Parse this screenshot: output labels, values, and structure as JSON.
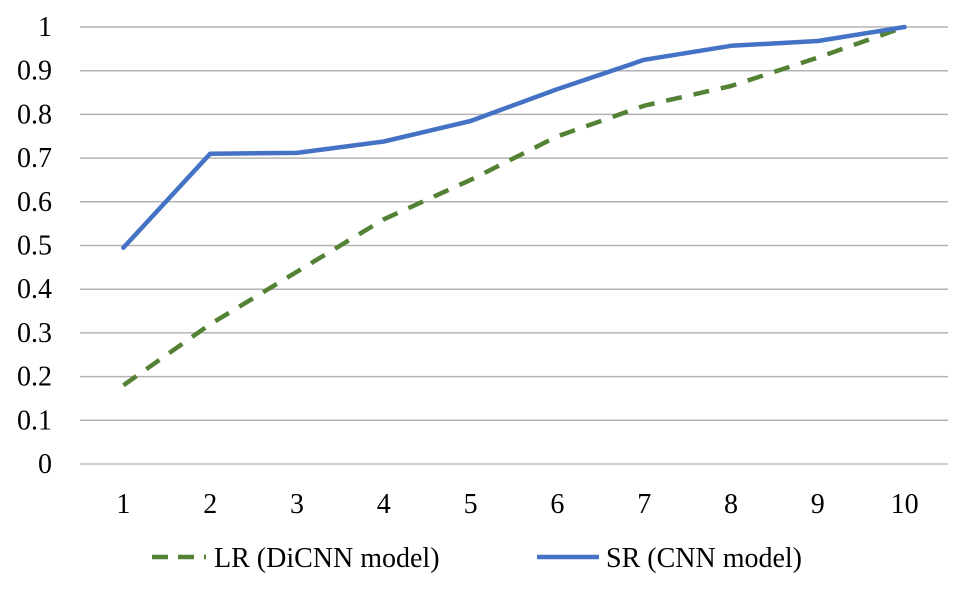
{
  "chart_data": {
    "type": "line",
    "title": "",
    "xlabel": "",
    "ylabel": "",
    "x": [
      1,
      2,
      3,
      4,
      5,
      6,
      7,
      8,
      9,
      10
    ],
    "ylim": [
      0,
      1
    ],
    "yticks": [
      "0",
      "0.1",
      "0.2",
      "0.3",
      "0.4",
      "0.5",
      "0.6",
      "0.7",
      "0.8",
      "0.9",
      "1"
    ],
    "xticks": [
      "1",
      "2",
      "3",
      "4",
      "5",
      "6",
      "7",
      "8",
      "9",
      "10"
    ],
    "grid": "horizontal",
    "legend_position": "bottom",
    "series": [
      {
        "name": "LR (DiCNN model)",
        "color": "#548235",
        "style": "dashed",
        "values": [
          0.18,
          0.32,
          0.44,
          0.56,
          0.65,
          0.75,
          0.82,
          0.865,
          0.93,
          1.0
        ]
      },
      {
        "name": "SR (CNN model)",
        "color": "#4472C4",
        "style": "solid",
        "values": [
          0.495,
          0.71,
          0.712,
          0.738,
          0.785,
          0.858,
          0.925,
          0.957,
          0.968,
          1.0
        ]
      }
    ]
  }
}
